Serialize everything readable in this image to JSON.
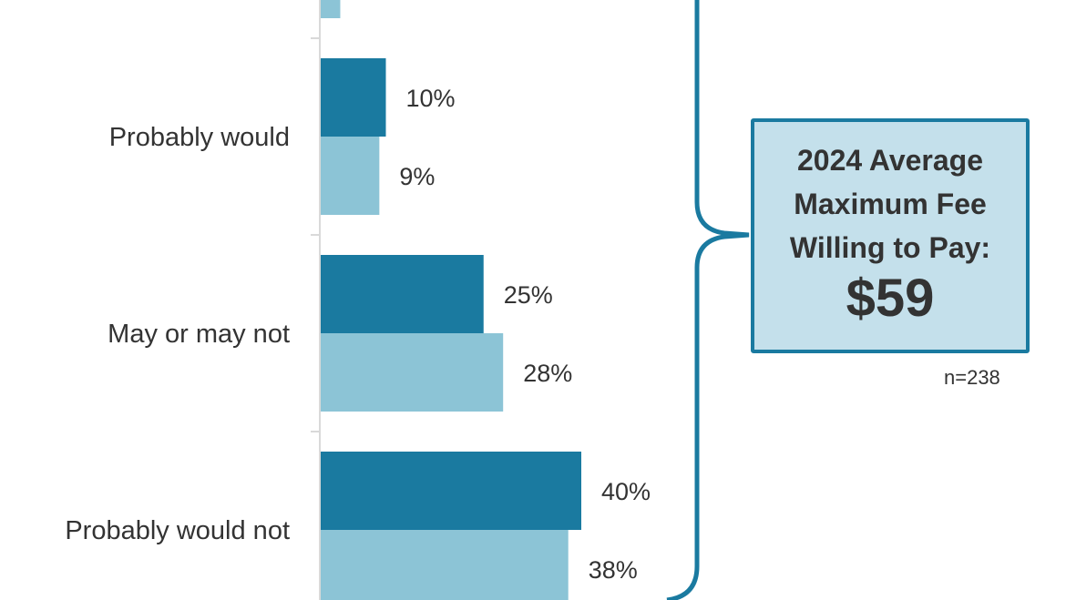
{
  "chart_data": {
    "type": "bar",
    "orientation": "horizontal",
    "categories": [
      "",
      "Probably would",
      "May or may not",
      "Probably would not"
    ],
    "series": [
      {
        "values": [
          null,
          10,
          25,
          40
        ],
        "color": "#1a7aa0"
      },
      {
        "values": [
          3,
          9,
          28,
          38
        ],
        "color": "#8cc4d6"
      }
    ],
    "data_labels": [
      [
        null,
        "10%",
        "25%",
        "40%"
      ],
      [
        null,
        "9%",
        "28%",
        "38%"
      ]
    ],
    "xlim": [
      0,
      100
    ],
    "grid": false
  },
  "callout": {
    "title_lines": [
      "2024 Average",
      "Maximum Fee",
      "Willing to Pay:"
    ],
    "value": "$59",
    "sample": "n=238"
  },
  "colors": {
    "accent": "#1a7aa0",
    "light": "#8cc4d6",
    "box_fill": "#c4e0eb"
  }
}
